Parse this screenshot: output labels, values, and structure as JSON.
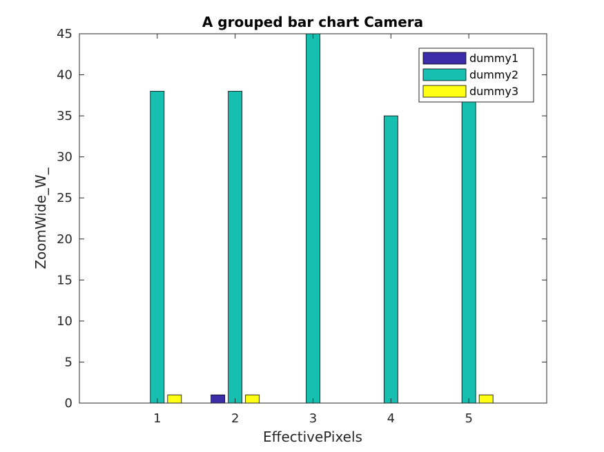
{
  "chart_data": {
    "type": "bar",
    "title": "A grouped bar chart Camera",
    "xlabel": "EffectivePixels",
    "ylabel": "ZoomWide_W_",
    "categories": [
      "1",
      "2",
      "3",
      "4",
      "5"
    ],
    "xlim": [
      0,
      6
    ],
    "ylim": [
      0,
      45
    ],
    "yticks": [
      0,
      5,
      10,
      15,
      20,
      25,
      30,
      35,
      40,
      45
    ],
    "grid": false,
    "legend_position": "top-right",
    "series": [
      {
        "name": "dummy1",
        "color": "#3d2ca8",
        "values": [
          0,
          1,
          0,
          0,
          0
        ]
      },
      {
        "name": "dummy2",
        "color": "#17bfb0",
        "values": [
          38,
          38,
          45,
          35,
          38
        ]
      },
      {
        "name": "dummy3",
        "color": "#ffff14",
        "values": [
          1,
          1,
          0,
          0,
          1
        ]
      }
    ]
  }
}
